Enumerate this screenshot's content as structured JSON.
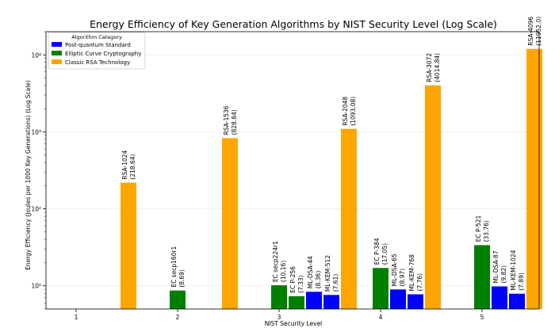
{
  "chart_data": {
    "type": "bar",
    "title": "Energy Efficiency of Key Generation Algorithms by NIST Security Level (Log Scale)",
    "xlabel": "NIST Security Level",
    "ylabel": "Energy Efficiency (Joules per 1000 Key Generations) (Log Scale)",
    "yscale": "log",
    "ylim": [
      5,
      20000
    ],
    "categories": [
      "1",
      "2",
      "3",
      "4",
      "5"
    ],
    "y_ticks": [
      {
        "value": 10,
        "label": "10¹"
      },
      {
        "value": 100,
        "label": "10²"
      },
      {
        "value": 1000,
        "label": "10³"
      },
      {
        "value": 10000,
        "label": "10⁴"
      }
    ],
    "legend": {
      "title": "Algorithm Category",
      "position": "top-left",
      "items": [
        {
          "name": "Post-quantum Standard",
          "color": "#0000ff"
        },
        {
          "name": "Elliptic Curve Cryptography",
          "color": "#008000"
        },
        {
          "name": "Classic RSA Technology",
          "color": "#ffa500"
        }
      ]
    },
    "bars": [
      {
        "level": 1,
        "slot": 3,
        "category": "Classic RSA Technology",
        "color": "#ffa500",
        "value": 218.64,
        "name": "RSA-1024",
        "value_label": "(218.64)"
      },
      {
        "level": 2,
        "slot": 0,
        "category": "Elliptic Curve Cryptography",
        "color": "#008000",
        "value": 8.69,
        "name": "EC secp160r1",
        "value_label": "(8.69)"
      },
      {
        "level": 2,
        "slot": 3,
        "category": "Classic RSA Technology",
        "color": "#ffa500",
        "value": 828.84,
        "name": "RSA-1536",
        "value_label": "(828.84)"
      },
      {
        "level": 3,
        "slot": 0,
        "category": "Elliptic Curve Cryptography",
        "color": "#008000",
        "value": 10.16,
        "name": "EC secp224r1",
        "value_label": "(10.16)"
      },
      {
        "level": 3,
        "slot": 1,
        "category": "Elliptic Curve Cryptography",
        "color": "#008000",
        "value": 7.33,
        "name": "EC P-256",
        "value_label": "(7.33)"
      },
      {
        "level": 3,
        "slot": 2,
        "category": "Post-quantum Standard",
        "color": "#0000ff",
        "value": 8.36,
        "name": "ML-DSA-44",
        "value_label": "(8.36)"
      },
      {
        "level": 3,
        "slot": 3,
        "category": "Post-quantum Standard",
        "color": "#0000ff",
        "value": 7.61,
        "name": "ML-KEM-512",
        "value_label": "(7.61)"
      },
      {
        "level": 3,
        "slot": 4,
        "category": "Classic RSA Technology",
        "color": "#ffa500",
        "value": 1093.08,
        "name": "RSA-2048",
        "value_label": "(1093.08)"
      },
      {
        "level": 4,
        "slot": 0,
        "category": "Elliptic Curve Cryptography",
        "color": "#008000",
        "value": 17.05,
        "name": "EC P-384",
        "value_label": "(17.05)"
      },
      {
        "level": 4,
        "slot": 1,
        "category": "Post-quantum Standard",
        "color": "#0000ff",
        "value": 8.97,
        "name": "ML-DSA-65",
        "value_label": "(8.97)"
      },
      {
        "level": 4,
        "slot": 2,
        "category": "Post-quantum Standard",
        "color": "#0000ff",
        "value": 7.76,
        "name": "ML-KEM-768",
        "value_label": "(7.76)"
      },
      {
        "level": 4,
        "slot": 3,
        "category": "Classic RSA Technology",
        "color": "#ffa500",
        "value": 4014.84,
        "name": "RSA-3072",
        "value_label": "(4014.84)"
      },
      {
        "level": 5,
        "slot": 0,
        "category": "Elliptic Curve Cryptography",
        "color": "#008000",
        "value": 33.76,
        "name": "EC P-521",
        "value_label": "(33.76)"
      },
      {
        "level": 5,
        "slot": 1,
        "category": "Post-quantum Standard",
        "color": "#0000ff",
        "value": 9.82,
        "name": "ML-DSA-87",
        "value_label": "(9.82)"
      },
      {
        "level": 5,
        "slot": 2,
        "category": "Post-quantum Standard",
        "color": "#0000ff",
        "value": 7.89,
        "name": "ML-KEM-1024",
        "value_label": "(7.89)"
      },
      {
        "level": 5,
        "slot": 3,
        "category": "Classic RSA Technology",
        "color": "#ffa500",
        "value": 11952.0,
        "name": "RSA-4096",
        "value_label": "(11952.0)"
      }
    ]
  }
}
